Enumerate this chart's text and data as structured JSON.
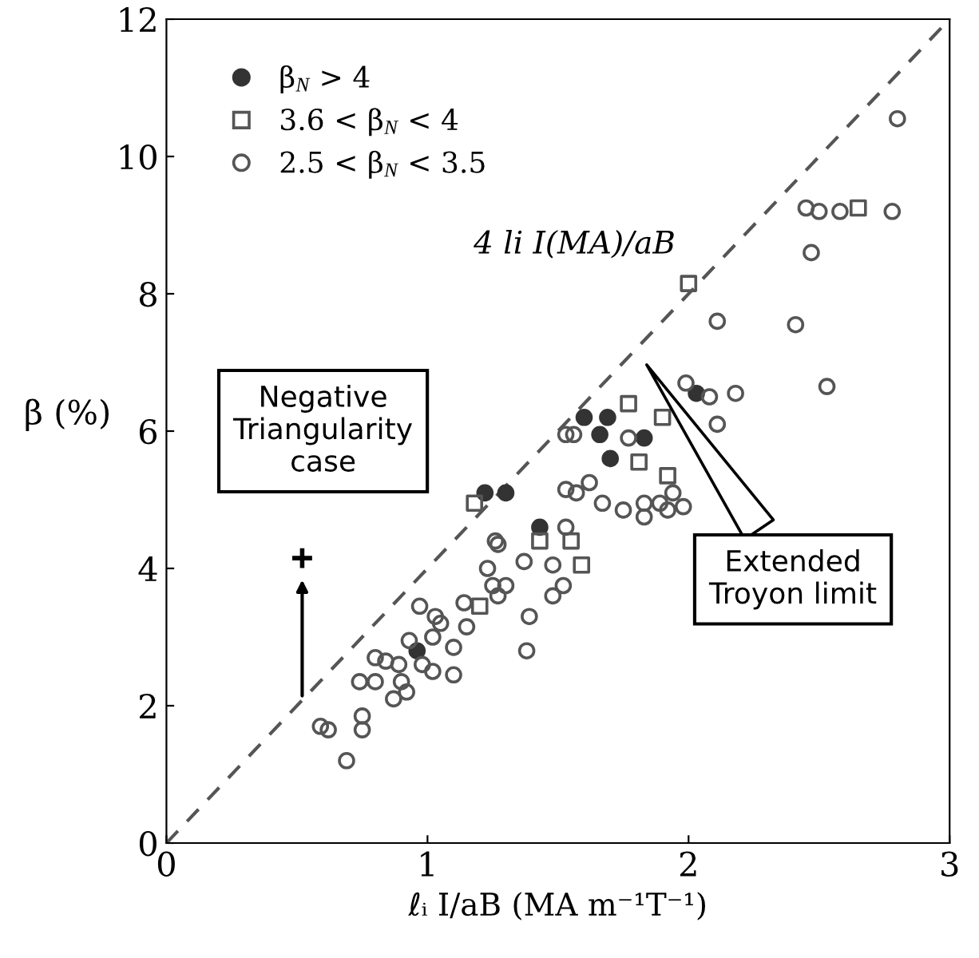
{
  "chart_data": {
    "type": "scatter",
    "xlabel": "ℓᵢ I/aB (MA m⁻¹T⁻¹)",
    "ylabel": "β (%)",
    "xlim": [
      0,
      3
    ],
    "ylim": [
      0,
      12
    ],
    "xticks": [
      0,
      1,
      2,
      3
    ],
    "yticks": [
      0,
      2,
      4,
      6,
      8,
      10,
      12
    ],
    "grid": false,
    "legend": "top left",
    "series": [
      {
        "name": "β$_{N}$ > 4",
        "marker": "circle",
        "color": "#333333",
        "x": [
          1.22,
          1.3,
          1.43,
          1.6,
          1.69,
          1.66,
          1.7,
          1.83,
          2.03,
          0.96
        ],
        "values": [
          5.1,
          5.1,
          4.6,
          6.2,
          6.2,
          5.95,
          5.6,
          5.9,
          6.55,
          2.8
        ]
      },
      {
        "name": "3.6 < β$_{N}$ < 4",
        "marker": "square",
        "color": "#555555",
        "x": [
          2.0,
          1.77,
          1.9,
          1.81,
          1.92,
          1.43,
          1.55,
          1.59,
          1.18,
          1.2,
          2.65
        ],
        "values": [
          8.15,
          6.4,
          6.2,
          5.55,
          5.35,
          4.4,
          4.4,
          4.05,
          4.95,
          3.45,
          9.25
        ]
      },
      {
        "name": "2.5 < β$_{N}$ < 3.5",
        "marker": "circle",
        "color": "#555555",
        "x": [
          2.8,
          2.45,
          2.5,
          2.58,
          2.78,
          2.47,
          2.11,
          2.41,
          2.53,
          1.99,
          2.08,
          2.18,
          2.11,
          1.53,
          1.56,
          1.77,
          1.94,
          1.98,
          1.53,
          1.57,
          1.62,
          1.67,
          1.75,
          1.83,
          1.83,
          1.89,
          1.92,
          1.26,
          1.53,
          1.48,
          1.37,
          1.52,
          1.48,
          1.39,
          1.38,
          0.69,
          0.59,
          0.62,
          0.75,
          0.75,
          0.74,
          0.8,
          0.8,
          0.84,
          0.89,
          0.9,
          0.87,
          0.92,
          0.93,
          0.98,
          1.02,
          0.97,
          1.03,
          1.05,
          1.02,
          1.1,
          1.1,
          1.14,
          1.15,
          1.23,
          1.25,
          1.3,
          1.27,
          1.27
        ],
        "values": [
          10.55,
          9.25,
          9.2,
          9.2,
          9.2,
          8.6,
          7.6,
          7.55,
          6.65,
          6.7,
          6.5,
          6.55,
          6.1,
          5.95,
          5.95,
          5.9,
          5.1,
          4.9,
          5.15,
          5.1,
          5.25,
          4.95,
          4.85,
          4.95,
          4.75,
          4.95,
          4.85,
          4.4,
          4.6,
          4.05,
          4.1,
          3.75,
          3.6,
          3.3,
          2.8,
          1.2,
          1.7,
          1.65,
          1.85,
          1.65,
          2.35,
          2.35,
          2.7,
          2.65,
          2.6,
          2.35,
          2.1,
          2.2,
          2.95,
          2.6,
          2.5,
          3.45,
          3.3,
          3.2,
          3.0,
          2.85,
          2.45,
          3.5,
          3.15,
          4.0,
          3.75,
          3.75,
          3.6,
          4.35
        ]
      },
      {
        "type": "line",
        "line_style": "dashed",
        "marker": "none",
        "color": "#555555",
        "x": [
          0,
          3
        ],
        "values": [
          0,
          12
        ]
      },
      {
        "marker": "cross",
        "color": "#000000",
        "x": [
          0.52
        ],
        "values": [
          4.15
        ]
      }
    ],
    "annotations": [
      {
        "text": "4 li I(MA)/aB",
        "x": 1.95,
        "y": 8.3
      },
      "Negative\nTriangularity\ncase",
      "Extended\nTroyon limit"
    ]
  }
}
